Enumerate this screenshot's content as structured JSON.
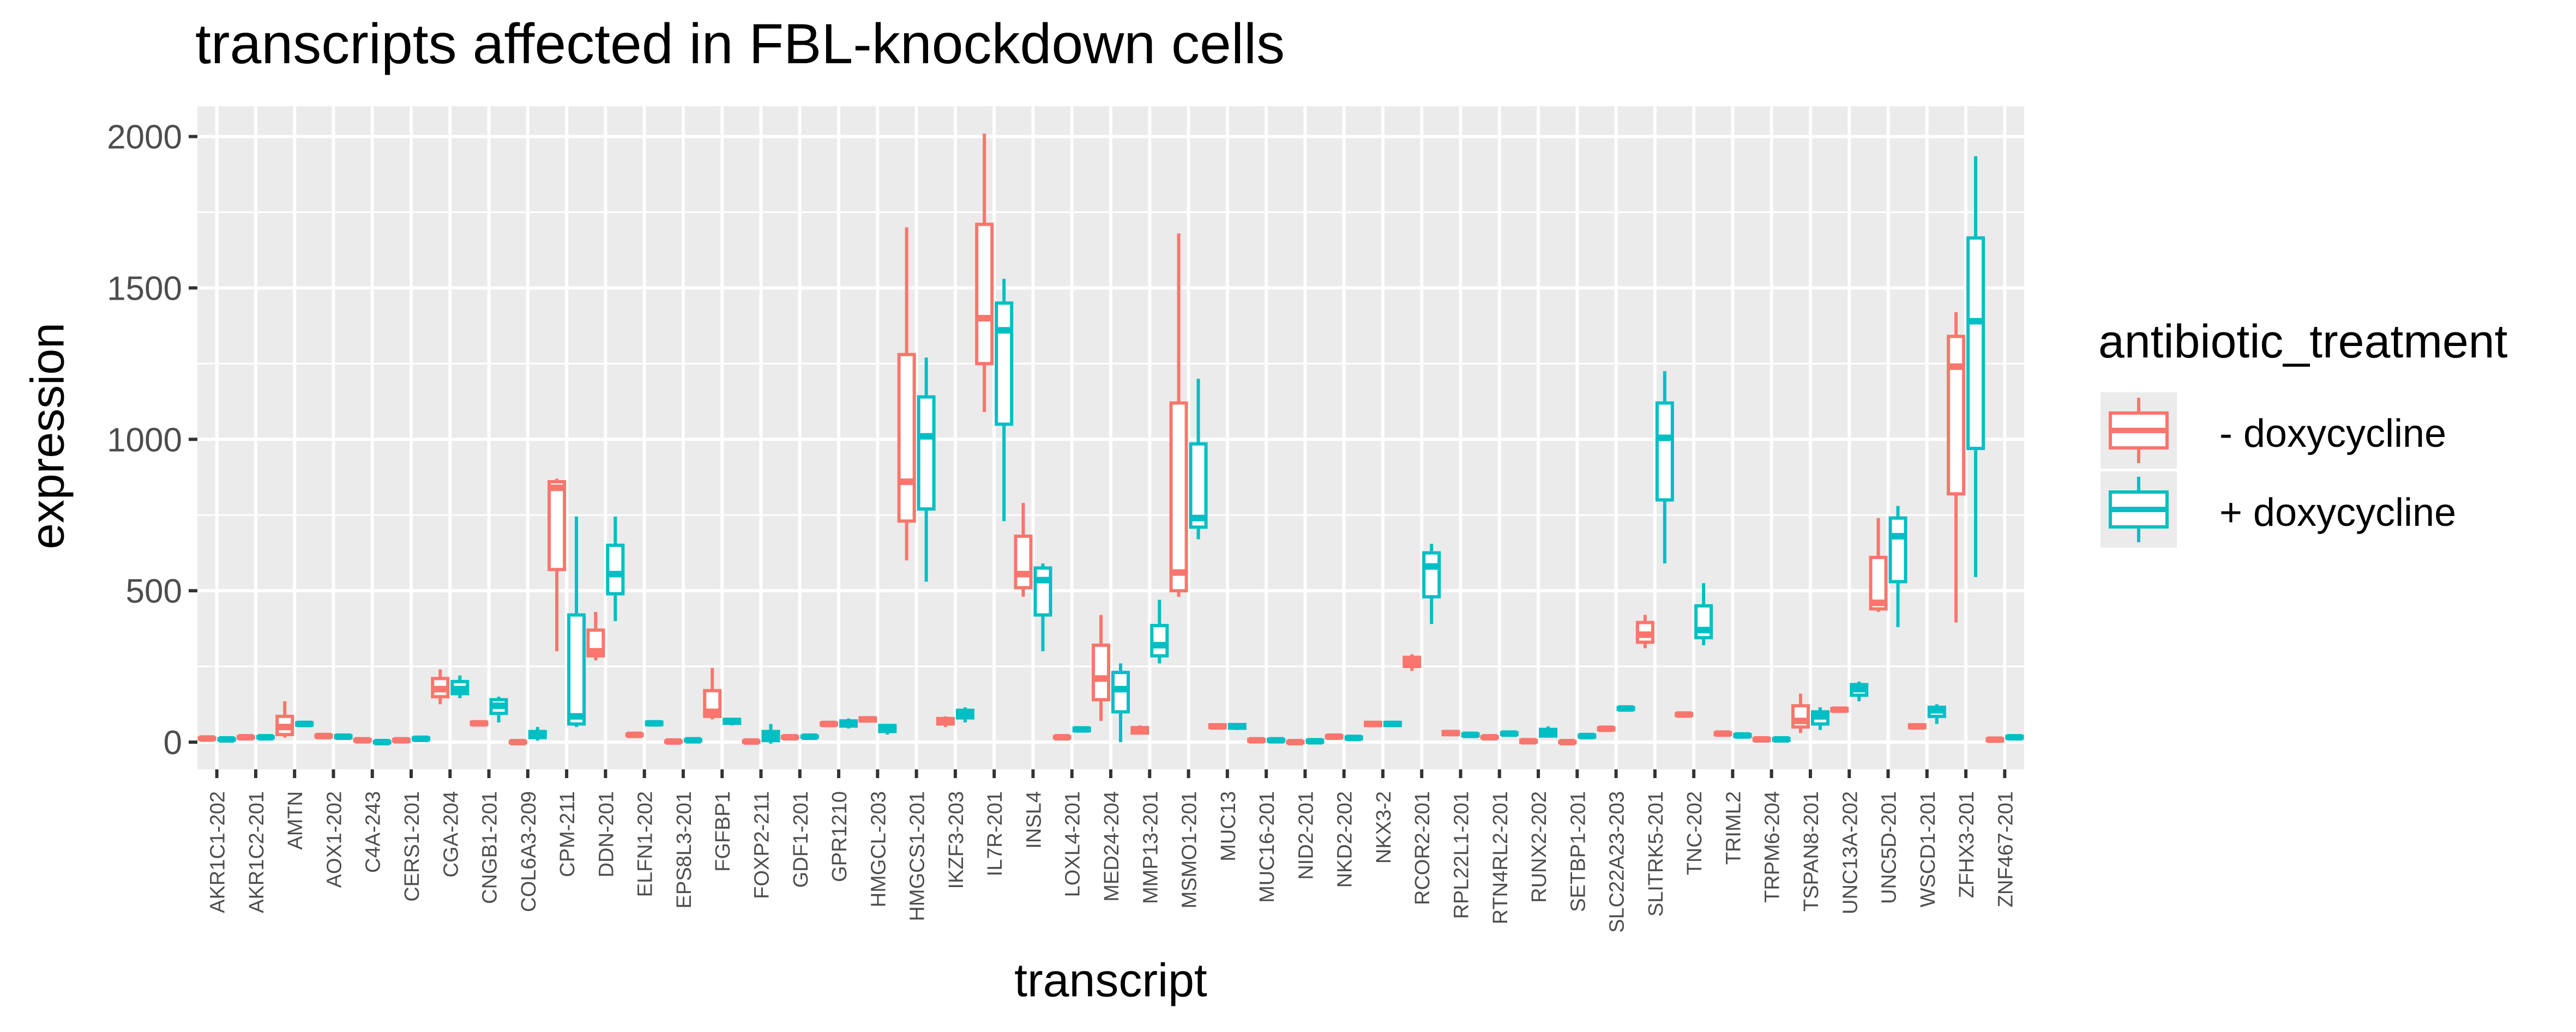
{
  "chart_data": {
    "type": "box",
    "title": "transcripts affected in FBL-knockdown cells",
    "xlabel": "transcript",
    "ylabel": "expression",
    "ylim": [
      -90,
      2100
    ],
    "yticks": [
      0,
      500,
      1000,
      1500,
      2000
    ],
    "legend": {
      "title": "antibiotic_treatment",
      "position": "right"
    },
    "series": [
      {
        "name": "- doxycycline",
        "color": "#F8766D"
      },
      {
        "name": "+ doxycycline",
        "color": "#00BFC4"
      }
    ],
    "categories": [
      "AKR1C1-202",
      "AKR1C2-201",
      "AMTN",
      "AOX1-202",
      "C4A-243",
      "CERS1-201",
      "CGA-204",
      "CNGB1-201",
      "COL6A3-209",
      "CPM-211",
      "DDN-201",
      "ELFN1-202",
      "EPS8L3-201",
      "FGFBP1",
      "FOXP2-211",
      "GDF1-201",
      "GPR1210",
      "HMGCL-203",
      "HMGCS1-201",
      "IKZF3-203",
      "IL7R-201",
      "INSL4",
      "LOXL4-201",
      "MED24-204",
      "MMP13-201",
      "MSMO1-201",
      "MUC13",
      "MUC16-201",
      "NID2-201",
      "NKD2-202",
      "NKX3-2",
      "RCOR2-201",
      "RPL22L1-201",
      "RTN4RL2-201",
      "RUNX2-202",
      "SETBP1-201",
      "SLC22A23-203",
      "SLITRK5-201",
      "TNC-202",
      "TRIML2",
      "TRPM6-204",
      "TSPAN8-201",
      "UNC13A-202",
      "UNC5D-201",
      "WSCD1-201",
      "ZFHX3-201",
      "ZNF467-201"
    ],
    "boxes": [
      [
        [
          8,
          10,
          12,
          14,
          16
        ],
        [
          5,
          7,
          9,
          11,
          13
        ]
      ],
      [
        [
          12,
          14,
          16,
          18,
          20
        ],
        [
          12,
          14,
          16,
          18,
          20
        ]
      ],
      [
        [
          15,
          25,
          50,
          85,
          135
        ],
        [
          52,
          56,
          60,
          64,
          68
        ]
      ],
      [
        [
          14,
          17,
          20,
          23,
          26
        ],
        [
          12,
          15,
          18,
          21,
          24
        ]
      ],
      [
        [
          2,
          4,
          6,
          8,
          10
        ],
        [
          -4,
          -2,
          0,
          2,
          4
        ]
      ],
      [
        [
          0,
          3,
          6,
          9,
          12
        ],
        [
          5,
          8,
          11,
          14,
          17
        ]
      ],
      [
        [
          125,
          150,
          175,
          210,
          240
        ],
        [
          145,
          160,
          175,
          200,
          220
        ]
      ],
      [
        [
          55,
          58,
          62,
          66,
          70
        ],
        [
          65,
          95,
          120,
          140,
          150
        ]
      ],
      [
        [
          -4,
          -2,
          0,
          2,
          4
        ],
        [
          5,
          15,
          25,
          35,
          50
        ]
      ],
      [
        [
          300,
          570,
          840,
          860,
          870
        ],
        [
          50,
          60,
          85,
          420,
          745
        ]
      ],
      [
        [
          270,
          285,
          300,
          370,
          430
        ],
        [
          400,
          490,
          555,
          650,
          745
        ]
      ],
      [
        [
          20,
          22,
          24,
          26,
          28
        ],
        [
          55,
          58,
          62,
          66,
          68
        ]
      ],
      [
        [
          -2,
          0,
          2,
          4,
          6
        ],
        [
          2,
          4,
          6,
          8,
          10
        ]
      ],
      [
        [
          75,
          85,
          100,
          170,
          245
        ],
        [
          55,
          62,
          70,
          75,
          80
        ]
      ],
      [
        [
          -2,
          0,
          2,
          4,
          6
        ],
        [
          -5,
          5,
          20,
          35,
          60
        ]
      ],
      [
        [
          12,
          14,
          16,
          18,
          20
        ],
        [
          14,
          16,
          18,
          20,
          22
        ]
      ],
      [
        [
          55,
          57,
          60,
          63,
          65
        ],
        [
          45,
          53,
          62,
          70,
          78
        ]
      ],
      [
        [
          65,
          70,
          75,
          80,
          85
        ],
        [
          25,
          35,
          45,
          55,
          60
        ]
      ],
      [
        [
          600,
          730,
          860,
          1280,
          1700
        ],
        [
          530,
          770,
          1010,
          1140,
          1270
        ]
      ],
      [
        [
          50,
          60,
          70,
          78,
          85
        ],
        [
          65,
          80,
          95,
          105,
          115
        ]
      ],
      [
        [
          1090,
          1250,
          1400,
          1710,
          2010
        ],
        [
          730,
          1050,
          1360,
          1450,
          1530
        ]
      ],
      [
        [
          480,
          510,
          555,
          680,
          790
        ],
        [
          300,
          420,
          535,
          575,
          590
        ]
      ],
      [
        [
          12,
          14,
          16,
          18,
          20
        ],
        [
          35,
          38,
          42,
          46,
          50
        ]
      ],
      [
        [
          70,
          140,
          210,
          320,
          420
        ],
        [
          0,
          100,
          175,
          230,
          260
        ]
      ],
      [
        [
          25,
          30,
          40,
          48,
          55
        ],
        [
          260,
          285,
          320,
          385,
          470
        ]
      ],
      [
        [
          480,
          500,
          560,
          1120,
          1680
        ],
        [
          670,
          710,
          740,
          985,
          1200
        ]
      ],
      [
        [
          45,
          48,
          52,
          57,
          60
        ],
        [
          40,
          46,
          52,
          58,
          62
        ]
      ],
      [
        [
          0,
          3,
          6,
          9,
          12
        ],
        [
          0,
          3,
          6,
          9,
          12
        ]
      ],
      [
        [
          -5,
          -2,
          0,
          2,
          5
        ],
        [
          -2,
          0,
          3,
          6,
          10
        ]
      ],
      [
        [
          12,
          15,
          18,
          21,
          24
        ],
        [
          8,
          11,
          14,
          17,
          20
        ]
      ],
      [
        [
          52,
          55,
          60,
          65,
          68
        ],
        [
          52,
          55,
          60,
          65,
          68
        ]
      ],
      [
        [
          235,
          250,
          265,
          280,
          290
        ],
        [
          390,
          480,
          580,
          625,
          655
        ]
      ],
      [
        [
          20,
          25,
          30,
          35,
          40
        ],
        [
          18,
          21,
          24,
          27,
          30
        ]
      ],
      [
        [
          12,
          14,
          16,
          18,
          20
        ],
        [
          22,
          25,
          28,
          31,
          34
        ]
      ],
      [
        [
          -3,
          0,
          3,
          6,
          9
        ],
        [
          15,
          20,
          30,
          42,
          52
        ]
      ],
      [
        [
          -4,
          -2,
          0,
          2,
          4
        ],
        [
          14,
          17,
          20,
          23,
          26
        ]
      ],
      [
        [
          38,
          41,
          44,
          47,
          50
        ],
        [
          105,
          108,
          111,
          114,
          117
        ]
      ],
      [
        [
          310,
          330,
          355,
          395,
          420
        ],
        [
          590,
          800,
          1005,
          1120,
          1225
        ]
      ],
      [
        [
          85,
          88,
          91,
          94,
          97
        ],
        [
          320,
          345,
          370,
          450,
          525
        ]
      ],
      [
        [
          22,
          25,
          28,
          31,
          34
        ],
        [
          16,
          19,
          22,
          25,
          28
        ]
      ],
      [
        [
          3,
          6,
          9,
          12,
          15
        ],
        [
          3,
          6,
          9,
          12,
          15
        ]
      ],
      [
        [
          30,
          50,
          70,
          120,
          160
        ],
        [
          40,
          60,
          85,
          100,
          115
        ]
      ],
      [
        [
          100,
          103,
          107,
          111,
          114
        ],
        [
          135,
          155,
          175,
          190,
          200
        ]
      ],
      [
        [
          430,
          440,
          460,
          610,
          740
        ],
        [
          380,
          530,
          680,
          740,
          780
        ]
      ],
      [
        [
          45,
          48,
          52,
          57,
          60
        ],
        [
          60,
          85,
          105,
          115,
          125
        ]
      ],
      [
        [
          395,
          820,
          1240,
          1340,
          1420
        ],
        [
          545,
          970,
          1390,
          1665,
          1935
        ]
      ],
      [
        [
          2,
          5,
          8,
          11,
          14
        ],
        [
          10,
          13,
          16,
          19,
          22
        ]
      ]
    ]
  }
}
